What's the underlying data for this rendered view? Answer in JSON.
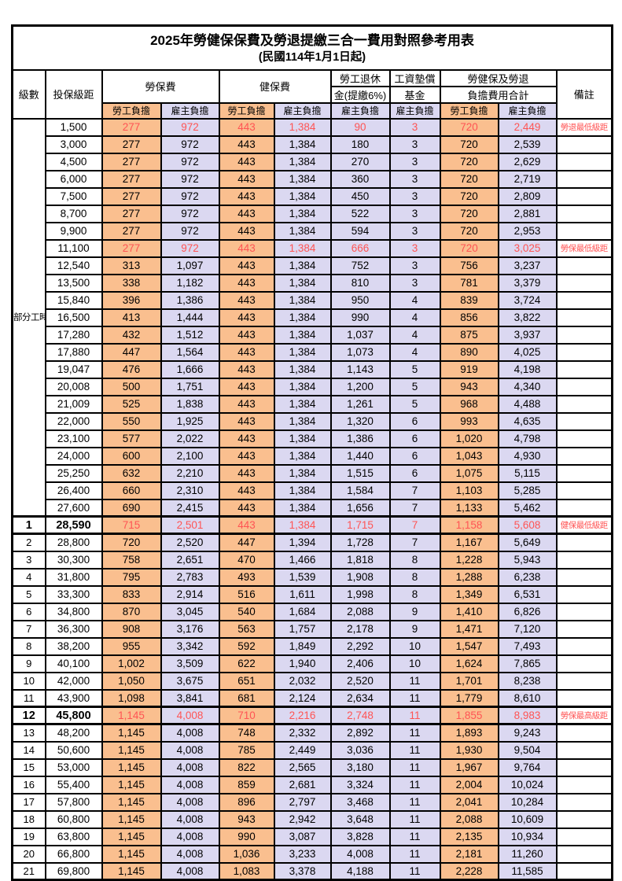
{
  "title": "2025年勞健保保費及勞退提繳三合一費用對照參考用表",
  "subtitle": "(民國114年1月1日起)",
  "colors": {
    "employee_bg": "#FABF8F",
    "employer_bg": "#DBD8F1",
    "highlight_text": "#FF5454",
    "border": "#000000"
  },
  "columns": {
    "level": "級數",
    "bracket": "投保級距",
    "labor_insurance": "勞保費",
    "health_insurance": "健保費",
    "pension_line1": "勞工退休",
    "pension_line2": "金(提繳6%)",
    "wage_fund_line1": "工資墊償",
    "wage_fund_line2": "基金",
    "total_line1": "勞健保及勞退",
    "total_line2": "負擔費用合計",
    "remark": "備註",
    "employee": "勞工負擔",
    "employer": "雇主負擔"
  },
  "part_time_label": "部分工時",
  "part_time_rowspan": 23,
  "rows": [
    {
      "level": "",
      "bracket": "1,500",
      "values": [
        "277",
        "972",
        "443",
        "1,384",
        "90",
        "3",
        "720",
        "2,449"
      ],
      "remark": "勞退最低級距",
      "hl": true
    },
    {
      "level": "",
      "bracket": "3,000",
      "values": [
        "277",
        "972",
        "443",
        "1,384",
        "180",
        "3",
        "720",
        "2,539"
      ],
      "remark": ""
    },
    {
      "level": "",
      "bracket": "4,500",
      "values": [
        "277",
        "972",
        "443",
        "1,384",
        "270",
        "3",
        "720",
        "2,629"
      ],
      "remark": ""
    },
    {
      "level": "",
      "bracket": "6,000",
      "values": [
        "277",
        "972",
        "443",
        "1,384",
        "360",
        "3",
        "720",
        "2,719"
      ],
      "remark": ""
    },
    {
      "level": "",
      "bracket": "7,500",
      "values": [
        "277",
        "972",
        "443",
        "1,384",
        "450",
        "3",
        "720",
        "2,809"
      ],
      "remark": ""
    },
    {
      "level": "",
      "bracket": "8,700",
      "values": [
        "277",
        "972",
        "443",
        "1,384",
        "522",
        "3",
        "720",
        "2,881"
      ],
      "remark": ""
    },
    {
      "level": "",
      "bracket": "9,900",
      "values": [
        "277",
        "972",
        "443",
        "1,384",
        "594",
        "3",
        "720",
        "2,953"
      ],
      "remark": ""
    },
    {
      "level": "",
      "bracket": "11,100",
      "values": [
        "277",
        "972",
        "443",
        "1,384",
        "666",
        "3",
        "720",
        "3,025"
      ],
      "remark": "勞保最低級距",
      "hl": true
    },
    {
      "level": "",
      "bracket": "12,540",
      "values": [
        "313",
        "1,097",
        "443",
        "1,384",
        "752",
        "3",
        "756",
        "3,237"
      ],
      "remark": ""
    },
    {
      "level": "",
      "bracket": "13,500",
      "values": [
        "338",
        "1,182",
        "443",
        "1,384",
        "810",
        "3",
        "781",
        "3,379"
      ],
      "remark": ""
    },
    {
      "level": "",
      "bracket": "15,840",
      "values": [
        "396",
        "1,386",
        "443",
        "1,384",
        "950",
        "4",
        "839",
        "3,724"
      ],
      "remark": ""
    },
    {
      "level": "",
      "bracket": "16,500",
      "values": [
        "413",
        "1,444",
        "443",
        "1,384",
        "990",
        "4",
        "856",
        "3,822"
      ],
      "remark": ""
    },
    {
      "level": "",
      "bracket": "17,280",
      "values": [
        "432",
        "1,512",
        "443",
        "1,384",
        "1,037",
        "4",
        "875",
        "3,937"
      ],
      "remark": ""
    },
    {
      "level": "",
      "bracket": "17,880",
      "values": [
        "447",
        "1,564",
        "443",
        "1,384",
        "1,073",
        "4",
        "890",
        "4,025"
      ],
      "remark": ""
    },
    {
      "level": "",
      "bracket": "19,047",
      "values": [
        "476",
        "1,666",
        "443",
        "1,384",
        "1,143",
        "5",
        "919",
        "4,198"
      ],
      "remark": ""
    },
    {
      "level": "",
      "bracket": "20,008",
      "values": [
        "500",
        "1,751",
        "443",
        "1,384",
        "1,200",
        "5",
        "943",
        "4,340"
      ],
      "remark": ""
    },
    {
      "level": "",
      "bracket": "21,009",
      "values": [
        "525",
        "1,838",
        "443",
        "1,384",
        "1,261",
        "5",
        "968",
        "4,488"
      ],
      "remark": ""
    },
    {
      "level": "",
      "bracket": "22,000",
      "values": [
        "550",
        "1,925",
        "443",
        "1,384",
        "1,320",
        "6",
        "993",
        "4,635"
      ],
      "remark": ""
    },
    {
      "level": "",
      "bracket": "23,100",
      "values": [
        "577",
        "2,022",
        "443",
        "1,384",
        "1,386",
        "6",
        "1,020",
        "4,798"
      ],
      "remark": ""
    },
    {
      "level": "",
      "bracket": "24,000",
      "values": [
        "600",
        "2,100",
        "443",
        "1,384",
        "1,440",
        "6",
        "1,043",
        "4,930"
      ],
      "remark": ""
    },
    {
      "level": "",
      "bracket": "25,250",
      "values": [
        "632",
        "2,210",
        "443",
        "1,384",
        "1,515",
        "6",
        "1,075",
        "5,115"
      ],
      "remark": ""
    },
    {
      "level": "",
      "bracket": "26,400",
      "values": [
        "660",
        "2,310",
        "443",
        "1,384",
        "1,584",
        "7",
        "1,103",
        "5,285"
      ],
      "remark": ""
    },
    {
      "level": "",
      "bracket": "27,600",
      "values": [
        "690",
        "2,415",
        "443",
        "1,384",
        "1,656",
        "7",
        "1,133",
        "5,462"
      ],
      "remark": ""
    },
    {
      "level": "1",
      "bracket": "28,590",
      "values": [
        "715",
        "2,501",
        "443",
        "1,384",
        "1,715",
        "7",
        "1,158",
        "5,608"
      ],
      "remark": "健保最低級距",
      "hl": true,
      "bold": true,
      "sec": true
    },
    {
      "level": "2",
      "bracket": "28,800",
      "values": [
        "720",
        "2,520",
        "447",
        "1,394",
        "1,728",
        "7",
        "1,167",
        "5,649"
      ],
      "remark": "",
      "sec": true
    },
    {
      "level": "3",
      "bracket": "30,300",
      "values": [
        "758",
        "2,651",
        "470",
        "1,466",
        "1,818",
        "8",
        "1,228",
        "5,943"
      ],
      "remark": ""
    },
    {
      "level": "4",
      "bracket": "31,800",
      "values": [
        "795",
        "2,783",
        "493",
        "1,539",
        "1,908",
        "8",
        "1,288",
        "6,238"
      ],
      "remark": ""
    },
    {
      "level": "5",
      "bracket": "33,300",
      "values": [
        "833",
        "2,914",
        "516",
        "1,611",
        "1,998",
        "8",
        "1,349",
        "6,531"
      ],
      "remark": ""
    },
    {
      "level": "6",
      "bracket": "34,800",
      "values": [
        "870",
        "3,045",
        "540",
        "1,684",
        "2,088",
        "9",
        "1,410",
        "6,826"
      ],
      "remark": ""
    },
    {
      "level": "7",
      "bracket": "36,300",
      "values": [
        "908",
        "3,176",
        "563",
        "1,757",
        "2,178",
        "9",
        "1,471",
        "7,120"
      ],
      "remark": ""
    },
    {
      "level": "8",
      "bracket": "38,200",
      "values": [
        "955",
        "3,342",
        "592",
        "1,849",
        "2,292",
        "10",
        "1,547",
        "7,493"
      ],
      "remark": ""
    },
    {
      "level": "9",
      "bracket": "40,100",
      "values": [
        "1,002",
        "3,509",
        "622",
        "1,940",
        "2,406",
        "10",
        "1,624",
        "7,865"
      ],
      "remark": ""
    },
    {
      "level": "10",
      "bracket": "42,000",
      "values": [
        "1,050",
        "3,675",
        "651",
        "2,032",
        "2,520",
        "11",
        "1,701",
        "8,238"
      ],
      "remark": ""
    },
    {
      "level": "11",
      "bracket": "43,900",
      "values": [
        "1,098",
        "3,841",
        "681",
        "2,124",
        "2,634",
        "11",
        "1,779",
        "8,610"
      ],
      "remark": ""
    },
    {
      "level": "12",
      "bracket": "45,800",
      "values": [
        "1,145",
        "4,008",
        "710",
        "2,216",
        "2,748",
        "11",
        "1,855",
        "8,983"
      ],
      "remark": "勞保最高級距",
      "hl": true,
      "bold": true,
      "sec": true
    },
    {
      "level": "13",
      "bracket": "48,200",
      "values": [
        "1,145",
        "4,008",
        "748",
        "2,332",
        "2,892",
        "11",
        "1,893",
        "9,243"
      ],
      "remark": "",
      "sec": true
    },
    {
      "level": "14",
      "bracket": "50,600",
      "values": [
        "1,145",
        "4,008",
        "785",
        "2,449",
        "3,036",
        "11",
        "1,930",
        "9,504"
      ],
      "remark": ""
    },
    {
      "level": "15",
      "bracket": "53,000",
      "values": [
        "1,145",
        "4,008",
        "822",
        "2,565",
        "3,180",
        "11",
        "1,967",
        "9,764"
      ],
      "remark": ""
    },
    {
      "level": "16",
      "bracket": "55,400",
      "values": [
        "1,145",
        "4,008",
        "859",
        "2,681",
        "3,324",
        "11",
        "2,004",
        "10,024"
      ],
      "remark": ""
    },
    {
      "level": "17",
      "bracket": "57,800",
      "values": [
        "1,145",
        "4,008",
        "896",
        "2,797",
        "3,468",
        "11",
        "2,041",
        "10,284"
      ],
      "remark": ""
    },
    {
      "level": "18",
      "bracket": "60,800",
      "values": [
        "1,145",
        "4,008",
        "943",
        "2,942",
        "3,648",
        "11",
        "2,088",
        "10,609"
      ],
      "remark": ""
    },
    {
      "level": "19",
      "bracket": "63,800",
      "values": [
        "1,145",
        "4,008",
        "990",
        "3,087",
        "3,828",
        "11",
        "2,135",
        "10,934"
      ],
      "remark": ""
    },
    {
      "level": "20",
      "bracket": "66,800",
      "values": [
        "1,145",
        "4,008",
        "1,036",
        "3,233",
        "4,008",
        "11",
        "2,181",
        "11,260"
      ],
      "remark": ""
    },
    {
      "level": "21",
      "bracket": "69,800",
      "values": [
        "1,145",
        "4,008",
        "1,083",
        "3,378",
        "4,188",
        "11",
        "2,228",
        "11,585"
      ],
      "remark": ""
    }
  ]
}
